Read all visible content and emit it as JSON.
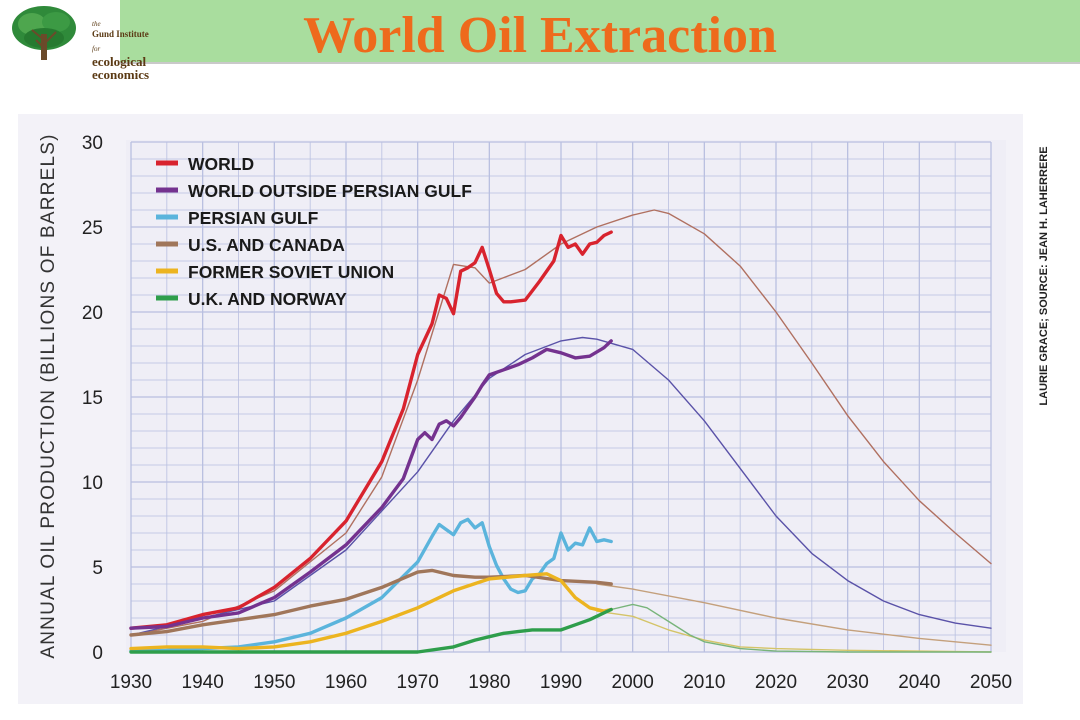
{
  "header": {
    "title": "World Oil Extraction",
    "logo": {
      "line1": "the",
      "line2": "Gund Institute",
      "line3": "for",
      "line4": "ecological",
      "line5": "economics"
    }
  },
  "colors": {
    "title": "#ee6a1c",
    "header_band": "#a9dd9e",
    "chart_bg": "#efeef6",
    "grid": "#b9bfe0"
  },
  "chart_data": {
    "type": "line",
    "title": "",
    "xlabel": "",
    "ylabel": "ANNUAL OIL PRODUCTION (BILLIONS OF BARRELS)",
    "credit": "LAURIE GRACE; SOURCE: JEAN H. LAHERRERE",
    "xlim": [
      1930,
      2050
    ],
    "ylim": [
      0,
      30
    ],
    "xticks": [
      1930,
      1940,
      1950,
      1960,
      1970,
      1980,
      1990,
      2000,
      2010,
      2020,
      2030,
      2040,
      2050
    ],
    "yticks": [
      0,
      5,
      10,
      15,
      20,
      25,
      30
    ],
    "grid": true,
    "legend_position": "top-left",
    "series": [
      {
        "name": "WORLD",
        "color": "#d8232e",
        "x": [
          1930,
          1935,
          1940,
          1945,
          1950,
          1955,
          1960,
          1965,
          1968,
          1970,
          1972,
          1973,
          1974,
          1975,
          1976,
          1977,
          1978,
          1979,
          1980,
          1981,
          1982,
          1983,
          1985,
          1987,
          1989,
          1990,
          1991,
          1992,
          1993,
          1994,
          1995,
          1996,
          1997
        ],
        "y": [
          1.4,
          1.6,
          2.2,
          2.6,
          3.8,
          5.5,
          7.7,
          11.2,
          14.3,
          17.5,
          19.3,
          21.0,
          20.8,
          19.9,
          22.4,
          22.6,
          22.9,
          23.8,
          22.5,
          21.1,
          20.6,
          20.6,
          20.7,
          21.8,
          23.0,
          24.5,
          23.8,
          24.0,
          23.4,
          24.0,
          24.1,
          24.5,
          24.7
        ]
      },
      {
        "name": "WORLD OUTSIDE PERSIAN GULF",
        "color": "#74328f",
        "x": [
          1930,
          1935,
          1940,
          1945,
          1950,
          1955,
          1960,
          1965,
          1968,
          1970,
          1971,
          1972,
          1973,
          1974,
          1975,
          1976,
          1977,
          1978,
          1979,
          1980,
          1982,
          1984,
          1986,
          1988,
          1990,
          1992,
          1994,
          1996,
          1997
        ],
        "y": [
          1.4,
          1.5,
          2.0,
          2.3,
          3.2,
          4.7,
          6.3,
          8.5,
          10.2,
          12.5,
          12.9,
          12.5,
          13.4,
          13.6,
          13.3,
          13.8,
          14.4,
          15.0,
          15.7,
          16.3,
          16.6,
          16.9,
          17.3,
          17.8,
          17.6,
          17.3,
          17.4,
          17.9,
          18.3
        ]
      },
      {
        "name": "PERSIAN GULF",
        "color": "#5bb4dc",
        "x": [
          1930,
          1935,
          1940,
          1945,
          1950,
          1955,
          1960,
          1965,
          1970,
          1972,
          1973,
          1974,
          1975,
          1976,
          1977,
          1978,
          1979,
          1980,
          1981,
          1982,
          1983,
          1984,
          1985,
          1986,
          1987,
          1988,
          1989,
          1990,
          1991,
          1992,
          1993,
          1994,
          1995,
          1996,
          1997
        ],
        "y": [
          0.05,
          0.1,
          0.2,
          0.3,
          0.6,
          1.1,
          2.0,
          3.2,
          5.3,
          6.8,
          7.5,
          7.2,
          6.9,
          7.6,
          7.8,
          7.3,
          7.6,
          6.2,
          5.1,
          4.3,
          3.7,
          3.5,
          3.6,
          4.3,
          4.6,
          5.2,
          5.5,
          7.0,
          6.0,
          6.4,
          6.3,
          7.3,
          6.5,
          6.6,
          6.5
        ]
      },
      {
        "name": "U.S. AND CANADA",
        "color": "#a0765a",
        "x": [
          1930,
          1935,
          1940,
          1945,
          1950,
          1955,
          1960,
          1965,
          1970,
          1972,
          1975,
          1978,
          1980,
          1985,
          1990,
          1995,
          1997
        ],
        "y": [
          1.0,
          1.2,
          1.6,
          1.9,
          2.2,
          2.7,
          3.1,
          3.8,
          4.7,
          4.8,
          4.5,
          4.4,
          4.4,
          4.5,
          4.2,
          4.1,
          4.0
        ]
      },
      {
        "name": "FORMER SOVIET UNION",
        "color": "#ecb420",
        "x": [
          1930,
          1935,
          1940,
          1945,
          1950,
          1955,
          1960,
          1965,
          1970,
          1975,
          1980,
          1985,
          1988,
          1990,
          1992,
          1994,
          1996,
          1997
        ],
        "y": [
          0.2,
          0.3,
          0.3,
          0.2,
          0.3,
          0.6,
          1.1,
          1.8,
          2.6,
          3.6,
          4.3,
          4.5,
          4.6,
          4.2,
          3.2,
          2.6,
          2.4,
          2.5
        ]
      },
      {
        "name": "U.K. AND NORWAY",
        "color": "#2e9e4b",
        "x": [
          1930,
          1950,
          1970,
          1975,
          1978,
          1980,
          1982,
          1984,
          1986,
          1988,
          1990,
          1992,
          1994,
          1996,
          1997
        ],
        "y": [
          0,
          0,
          0,
          0.3,
          0.7,
          0.9,
          1.1,
          1.2,
          1.3,
          1.3,
          1.3,
          1.6,
          1.9,
          2.3,
          2.5
        ]
      },
      {
        "name": "",
        "color": "#b07060",
        "role": "projection",
        "x": [
          1930,
          1940,
          1950,
          1960,
          1965,
          1970,
          1975,
          1978,
          1980,
          1985,
          1990,
          1995,
          2000,
          2003,
          2005,
          2010,
          2015,
          2020,
          2025,
          2030,
          2035,
          2040,
          2045,
          2050
        ],
        "y": [
          1.0,
          1.8,
          3.6,
          7.0,
          10.3,
          16.0,
          22.8,
          22.6,
          21.7,
          22.5,
          24.0,
          25.0,
          25.7,
          26.0,
          25.8,
          24.6,
          22.7,
          20.0,
          17.0,
          13.9,
          11.2,
          8.9,
          7.0,
          5.2
        ]
      },
      {
        "name": "",
        "color": "#5a52a8",
        "role": "projection",
        "x": [
          1930,
          1950,
          1960,
          1970,
          1975,
          1980,
          1985,
          1990,
          1993,
          1995,
          2000,
          2005,
          2010,
          2015,
          2020,
          2025,
          2030,
          2035,
          2040,
          2045,
          2050
        ],
        "y": [
          1.0,
          3.0,
          6.0,
          10.6,
          13.6,
          16.1,
          17.5,
          18.3,
          18.5,
          18.4,
          17.8,
          16.0,
          13.6,
          10.8,
          8.0,
          5.8,
          4.2,
          3.0,
          2.2,
          1.7,
          1.4
        ]
      },
      {
        "name": "",
        "color": "#c4a07c",
        "role": "projection",
        "x": [
          1995,
          2000,
          2010,
          2020,
          2030,
          2040,
          2050
        ],
        "y": [
          4.0,
          3.7,
          2.9,
          2.0,
          1.3,
          0.8,
          0.4
        ]
      },
      {
        "name": "",
        "color": "#d4c468",
        "role": "projection",
        "x": [
          1995,
          2000,
          2005,
          2010,
          2015,
          2020,
          2030,
          2040,
          2050
        ],
        "y": [
          2.4,
          2.1,
          1.3,
          0.7,
          0.3,
          0.2,
          0.1,
          0.05,
          0
        ]
      },
      {
        "name": "",
        "color": "#78b47a",
        "role": "projection",
        "x": [
          1997,
          2000,
          2002,
          2005,
          2008,
          2010,
          2015,
          2020,
          2030,
          2050
        ],
        "y": [
          2.5,
          2.8,
          2.6,
          1.8,
          1.0,
          0.6,
          0.2,
          0.05,
          0,
          0
        ]
      }
    ]
  }
}
